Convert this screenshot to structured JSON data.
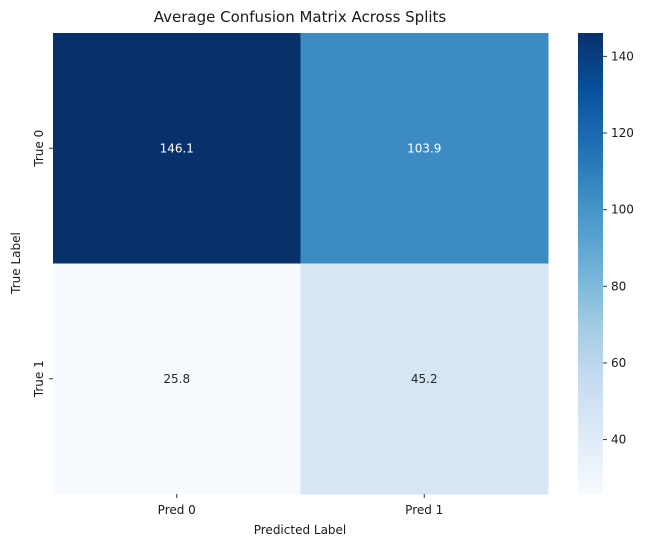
{
  "chart_data": {
    "type": "heatmap",
    "title": "Average Confusion Matrix Across Splits",
    "xlabel": "Predicted Label",
    "ylabel": "True Label",
    "x_categories": [
      "Pred 0",
      "Pred 1"
    ],
    "y_categories": [
      "True 0",
      "True 1"
    ],
    "values": [
      [
        146.1,
        103.9
      ],
      [
        25.8,
        45.2
      ]
    ],
    "cell_labels": [
      [
        "146.1",
        "103.9"
      ],
      [
        "25.8",
        "45.2"
      ]
    ],
    "colormap": "Blues",
    "colorbar": {
      "range": [
        25.8,
        146.1
      ],
      "ticks": [
        40,
        60,
        80,
        100,
        120,
        140
      ],
      "tick_labels": [
        "40",
        "60",
        "80",
        "100",
        "120",
        "140"
      ]
    }
  }
}
